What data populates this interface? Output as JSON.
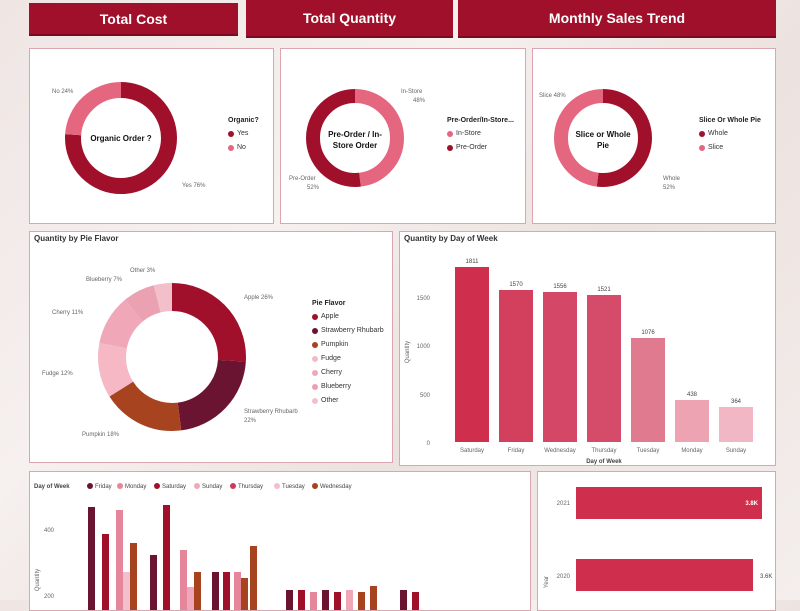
{
  "headers": {
    "total_cost": "Total Cost",
    "total_quantity": "Total Quantity",
    "monthly_sales_trend": "Monthly Sales Trend"
  },
  "colors": {
    "dark": "#a0102b",
    "mid": "#cf3a58",
    "light": "#e5869a",
    "rose": "#f0a8b8",
    "maroon": "#6b1431",
    "rust": "#a8431f"
  },
  "organic": {
    "title": "Organic Order ?",
    "legend_title": "Organic?",
    "legend": [
      {
        "label": "Yes",
        "color": "#a0102b"
      },
      {
        "label": "No",
        "color": "#e5667f"
      }
    ],
    "annot_no": "No 24%",
    "annot_yes": "Yes 76%"
  },
  "preorder": {
    "title_1": "Pre-Order / In-",
    "title_2": "Store Order",
    "legend_title": "Pre-Order/In-Store...",
    "legend": [
      {
        "label": "In-Store",
        "color": "#e5667f"
      },
      {
        "label": "Pre-Order",
        "color": "#a0102b"
      }
    ],
    "annot_instore_1": "In-Store",
    "annot_instore_2": "48%",
    "annot_pre_1": "Pre-Order",
    "annot_pre_2": "52%"
  },
  "slice": {
    "title_1": "Slice or Whole",
    "title_2": "Pie",
    "legend_title": "Slice Or Whole Pie",
    "legend": [
      {
        "label": "Whole",
        "color": "#a0102b"
      },
      {
        "label": "Slice",
        "color": "#e5667f"
      }
    ],
    "annot_slice": "Slice 48%",
    "annot_whole_1": "Whole",
    "annot_whole_2": "52%"
  },
  "flavor": {
    "title": "Quantity by Pie Flavor",
    "legend_title": "Pie Flavor",
    "legend": [
      {
        "label": "Apple",
        "color": "#a0102b"
      },
      {
        "label": "Strawberry Rhubarb",
        "color": "#6b1431"
      },
      {
        "label": "Pumpkin",
        "color": "#a8431f"
      },
      {
        "label": "Fudge",
        "color": "#f5b8c4"
      },
      {
        "label": "Cherry",
        "color": "#f0a8b8"
      },
      {
        "label": "Blueberry",
        "color": "#eaa2b3"
      },
      {
        "label": "Other",
        "color": "#f3bfca"
      }
    ],
    "annots": {
      "apple": "Apple 26%",
      "strawberry_1": "Strawberry Rhubarb",
      "strawberry_2": "22%",
      "pumpkin": "Pumpkin 18%",
      "fudge": "Fudge 12%",
      "cherry": "Cherry 11%",
      "blueberry": "Blueberry 7%",
      "other": "Other 3%"
    }
  },
  "day_chart": {
    "title": "Quantity by Day of Week",
    "xlabel": "Day of Week",
    "ylabel": "Quantity",
    "yticks": [
      "0",
      "500",
      "1000",
      "1500"
    ],
    "bars": [
      {
        "day": "Saturday",
        "value": "1811"
      },
      {
        "day": "Friday",
        "value": "1570"
      },
      {
        "day": "Wednesday",
        "value": "1556"
      },
      {
        "day": "Thursday",
        "value": "1521"
      },
      {
        "day": "Tuesday",
        "value": "1076"
      },
      {
        "day": "Monday",
        "value": "438"
      },
      {
        "day": "Sunday",
        "value": "364"
      }
    ]
  },
  "week_chart": {
    "legend_title": "Day of Week",
    "legend": [
      {
        "label": "Friday",
        "color": "#6b1431"
      },
      {
        "label": "Monday",
        "color": "#e5869a"
      },
      {
        "label": "Saturday",
        "color": "#a0102b"
      },
      {
        "label": "Sunday",
        "color": "#f0a8b8"
      },
      {
        "label": "Thursday",
        "color": "#cf3a58"
      },
      {
        "label": "Tuesday",
        "color": "#f3bfca"
      },
      {
        "label": "Wednesday",
        "color": "#a8431f"
      }
    ],
    "ylabel": "Quantity",
    "yticks": [
      "400",
      "200"
    ]
  },
  "year_chart": {
    "ylabel": "Year",
    "rows": [
      {
        "year": "2021",
        "value": "3.8K"
      },
      {
        "year": "2020",
        "value": "3.6K"
      }
    ]
  }
}
